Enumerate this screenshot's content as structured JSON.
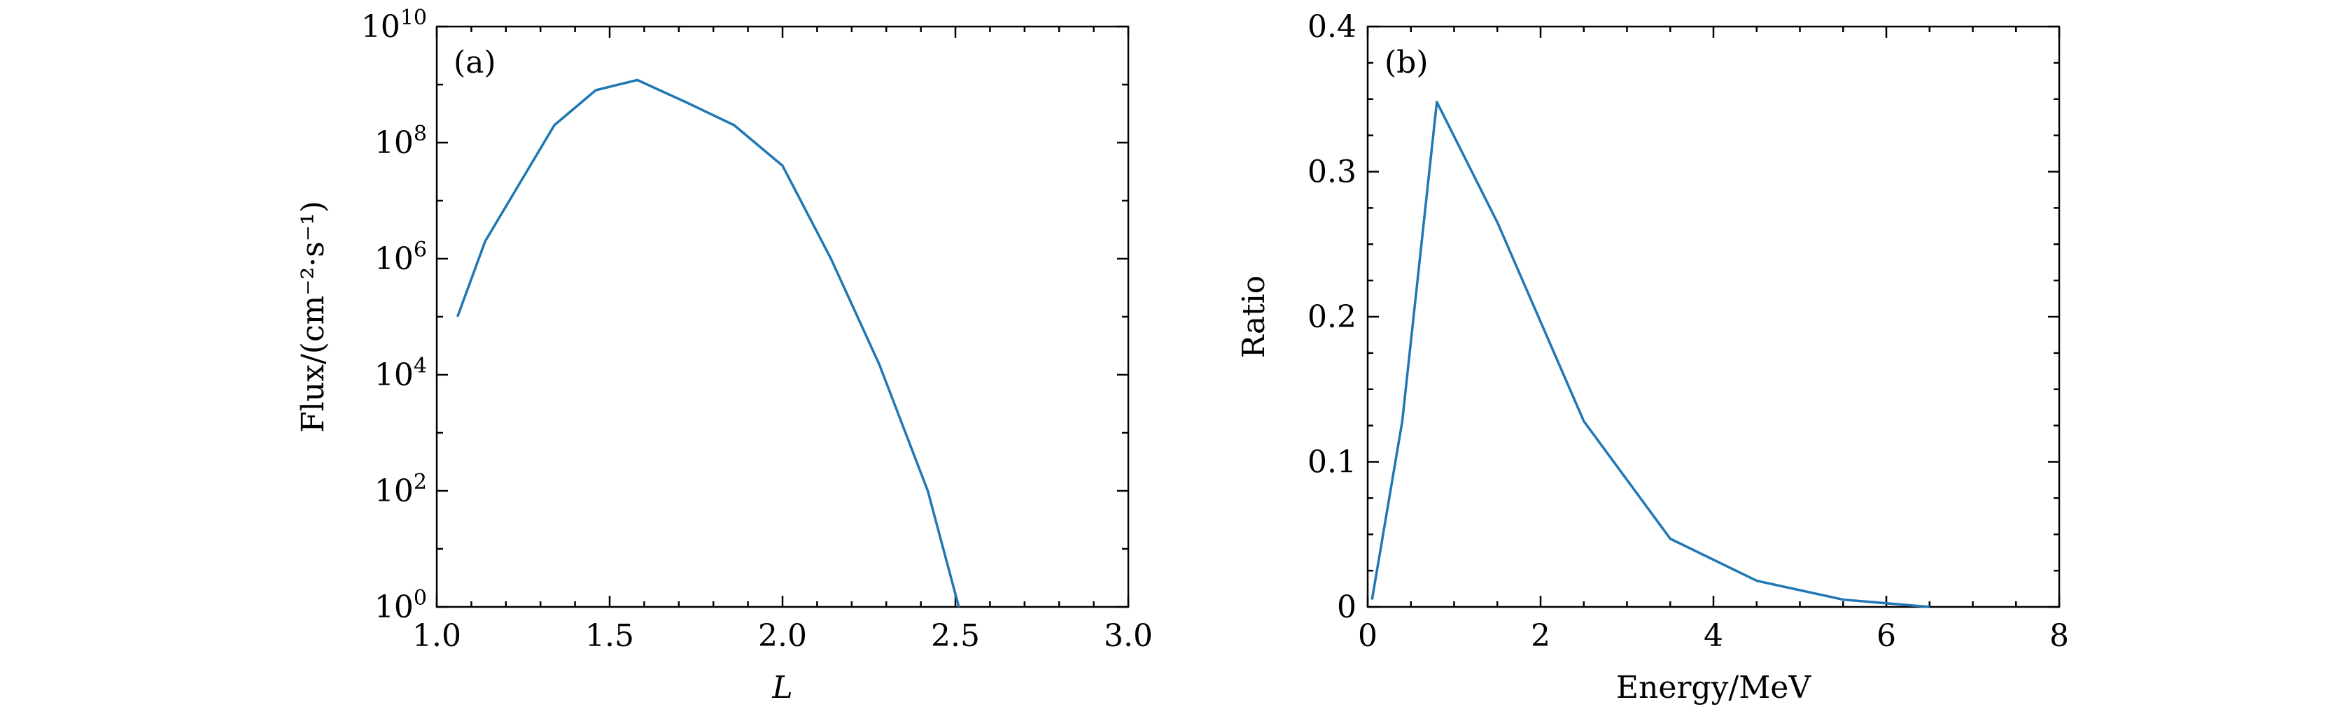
{
  "colors": {
    "line": "#1f77b4",
    "axes": "#000000"
  },
  "chart_data": [
    {
      "type": "line",
      "panel_label": "(a)",
      "xlabel": "L",
      "ylabel": "Flux/(cm⁻²·s⁻¹)",
      "yscale": "log",
      "xlim": [
        1.0,
        3.0
      ],
      "ylim": [
        1,
        10000000000
      ],
      "x_ticks": [
        "1.0",
        "1.5",
        "2.0",
        "2.5",
        "3.0"
      ],
      "y_ticks": [
        {
          "base": "10",
          "exp": "0"
        },
        {
          "base": "10",
          "exp": "2"
        },
        {
          "base": "10",
          "exp": "4"
        },
        {
          "base": "10",
          "exp": "6"
        },
        {
          "base": "10",
          "exp": "8"
        },
        {
          "base": "10",
          "exp": "10"
        }
      ],
      "grid": false,
      "legend": "none",
      "series": [
        {
          "x": [
            1.06,
            1.14,
            1.24,
            1.34,
            1.46,
            1.58,
            1.72,
            1.86,
            2.0,
            2.14,
            2.28,
            2.42,
            2.51
          ],
          "y": [
            100000,
            2000000,
            20000000,
            200000000,
            800000000,
            1200000000,
            500000000,
            200000000,
            40000000,
            1000000,
            15000,
            100,
            1
          ]
        }
      ]
    },
    {
      "type": "line",
      "panel_label": "(b)",
      "xlabel": "Energy/MeV",
      "ylabel": "Ratio",
      "xlim": [
        0,
        8
      ],
      "ylim": [
        0,
        0.4
      ],
      "x_ticks": [
        "0",
        "2",
        "4",
        "6",
        "8"
      ],
      "y_ticks": [
        "0",
        "0.1",
        "0.2",
        "0.3",
        "0.4"
      ],
      "grid": false,
      "legend": "none",
      "series": [
        {
          "x": [
            0.05,
            0.4,
            0.8,
            1.5,
            2.5,
            3.5,
            4.5,
            5.5,
            6.5
          ],
          "y": [
            0.005,
            0.128,
            0.348,
            0.265,
            0.128,
            0.047,
            0.018,
            0.005,
            0.0
          ]
        }
      ]
    }
  ]
}
